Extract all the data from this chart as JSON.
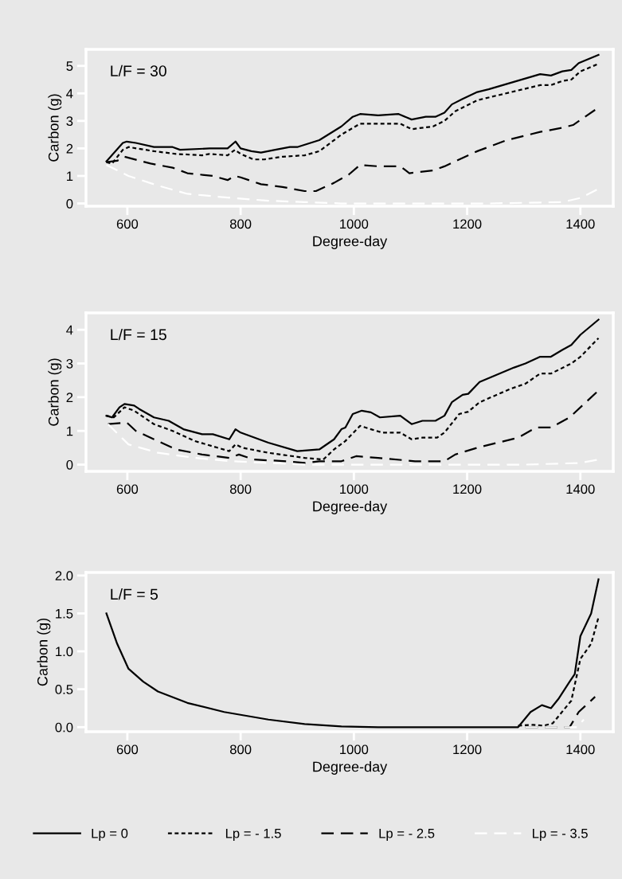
{
  "chart_data": [
    {
      "type": "line",
      "title": "L/F = 30",
      "xlabel": "Degree-day",
      "ylabel": "Carbon (g)",
      "xlim": [
        527,
        1458
      ],
      "xticks": [
        600,
        800,
        1000,
        1200,
        1400
      ],
      "ylim": [
        -0.1,
        5.6
      ],
      "yticks": [
        0,
        1,
        2,
        3,
        4,
        5
      ],
      "grid": false,
      "series": [
        {
          "color": "#000000",
          "line_style": "solid",
          "x": [
            563,
            592,
            599,
            615,
            647,
            660,
            680,
            693,
            745,
            777,
            791,
            800,
            819,
            836,
            861,
            887,
            900,
            939,
            978,
            998,
            1011,
            1043,
            1079,
            1102,
            1127,
            1144,
            1160,
            1173,
            1192,
            1218,
            1238,
            1329,
            1348,
            1368,
            1384,
            1397,
            1432
          ],
          "values": [
            1.53,
            2.2,
            2.25,
            2.2,
            2.05,
            2.05,
            2.05,
            1.95,
            2.0,
            2.0,
            2.25,
            2.0,
            1.9,
            1.85,
            1.95,
            2.05,
            2.05,
            2.3,
            2.8,
            3.15,
            3.25,
            3.2,
            3.25,
            3.05,
            3.15,
            3.15,
            3.3,
            3.6,
            3.8,
            4.05,
            4.15,
            4.7,
            4.65,
            4.8,
            4.85,
            5.1,
            5.4
          ]
        },
        {
          "color": "#000000",
          "line_style": "dotted",
          "x": [
            563,
            573,
            592,
            602,
            647,
            686,
            732,
            745,
            777,
            790,
            800,
            823,
            842,
            874,
            913,
            939,
            978,
            1011,
            1043,
            1082,
            1102,
            1140,
            1160,
            1179,
            1218,
            1238,
            1329,
            1348,
            1368,
            1384,
            1400,
            1429
          ],
          "values": [
            1.5,
            1.45,
            1.95,
            2.05,
            1.9,
            1.8,
            1.75,
            1.8,
            1.75,
            1.95,
            1.8,
            1.6,
            1.6,
            1.7,
            1.75,
            1.9,
            2.5,
            2.9,
            2.9,
            2.9,
            2.7,
            2.8,
            3.0,
            3.35,
            3.75,
            3.85,
            4.3,
            4.3,
            4.45,
            4.5,
            4.8,
            5.05
          ]
        },
        {
          "color": "#000000",
          "line_style": "dashed",
          "x": [
            563,
            582,
            595,
            641,
            680,
            706,
            751,
            777,
            790,
            800,
            836,
            874,
            913,
            933,
            965,
            991,
            1011,
            1043,
            1082,
            1098,
            1140,
            1160,
            1218,
            1270,
            1329,
            1368,
            1387,
            1426
          ],
          "values": [
            1.5,
            1.55,
            1.7,
            1.45,
            1.3,
            1.1,
            1.0,
            0.85,
            1.0,
            0.95,
            0.7,
            0.6,
            0.45,
            0.45,
            0.75,
            1.05,
            1.4,
            1.35,
            1.35,
            1.1,
            1.2,
            1.35,
            1.9,
            2.3,
            2.6,
            2.75,
            2.85,
            3.4
          ]
        },
        {
          "color": "#ffffff",
          "line_style": "dashed",
          "x": [
            563,
            602,
            654,
            706,
            784,
            849,
            913,
            978,
            1108,
            1238,
            1368,
            1400,
            1429
          ],
          "values": [
            1.4,
            1.0,
            0.65,
            0.35,
            0.2,
            0.1,
            0.05,
            0.0,
            0.0,
            0.0,
            0.05,
            0.2,
            0.5
          ]
        }
      ]
    },
    {
      "type": "line",
      "title": "L/F = 15",
      "xlabel": "Degree-day",
      "ylabel": "Carbon (g)",
      "xlim": [
        527,
        1458
      ],
      "xticks": [
        600,
        800,
        1000,
        1200,
        1400
      ],
      "ylim": [
        -0.2,
        4.5
      ],
      "yticks": [
        0,
        1,
        2,
        3,
        4
      ],
      "grid": false,
      "series": [
        {
          "color": "#000000",
          "line_style": "solid",
          "x": [
            563,
            573,
            586,
            595,
            612,
            621,
            647,
            673,
            699,
            732,
            751,
            780,
            791,
            800,
            849,
            900,
            939,
            965,
            978,
            985,
            998,
            1014,
            1030,
            1046,
            1082,
            1102,
            1121,
            1144,
            1160,
            1173,
            1192,
            1202,
            1222,
            1283,
            1303,
            1329,
            1348,
            1368,
            1384,
            1400,
            1432
          ],
          "values": [
            1.45,
            1.4,
            1.7,
            1.8,
            1.75,
            1.65,
            1.4,
            1.3,
            1.05,
            0.9,
            0.9,
            0.75,
            1.05,
            0.95,
            0.65,
            0.4,
            0.45,
            0.75,
            1.05,
            1.1,
            1.5,
            1.6,
            1.55,
            1.4,
            1.45,
            1.2,
            1.3,
            1.3,
            1.45,
            1.85,
            2.07,
            2.1,
            2.45,
            2.88,
            3.0,
            3.2,
            3.2,
            3.4,
            3.55,
            3.85,
            4.3
          ]
        },
        {
          "color": "#000000",
          "line_style": "dotted",
          "x": [
            563,
            576,
            595,
            612,
            647,
            680,
            719,
            780,
            791,
            803,
            849,
            913,
            946,
            965,
            985,
            1011,
            1030,
            1050,
            1082,
            1102,
            1121,
            1147,
            1160,
            1186,
            1202,
            1222,
            1277,
            1303,
            1329,
            1348,
            1384,
            1400,
            1432
          ],
          "values": [
            1.45,
            1.4,
            1.7,
            1.6,
            1.2,
            1.0,
            0.7,
            0.4,
            0.6,
            0.5,
            0.35,
            0.2,
            0.15,
            0.45,
            0.7,
            1.15,
            1.05,
            0.95,
            0.95,
            0.75,
            0.8,
            0.8,
            0.95,
            1.5,
            1.57,
            1.85,
            2.25,
            2.4,
            2.7,
            2.7,
            3.0,
            3.2,
            3.75
          ]
        },
        {
          "color": "#000000",
          "line_style": "dashed",
          "x": [
            566,
            599,
            615,
            647,
            686,
            732,
            780,
            797,
            823,
            881,
            913,
            939,
            978,
            1004,
            1043,
            1108,
            1160,
            1179,
            1218,
            1290,
            1322,
            1348,
            1381,
            1432
          ],
          "values": [
            1.2,
            1.25,
            1.0,
            0.75,
            0.45,
            0.3,
            0.2,
            0.3,
            0.15,
            0.1,
            0.05,
            0.1,
            0.1,
            0.25,
            0.2,
            0.1,
            0.1,
            0.3,
            0.5,
            0.8,
            1.1,
            1.1,
            1.4,
            2.2
          ]
        },
        {
          "color": "#ffffff",
          "line_style": "dashed",
          "x": [
            566,
            602,
            654,
            719,
            784,
            913,
            1108,
            1303,
            1400,
            1432
          ],
          "values": [
            1.2,
            0.6,
            0.35,
            0.2,
            0.1,
            0.0,
            0.0,
            0.0,
            0.05,
            0.15
          ]
        }
      ]
    },
    {
      "type": "line",
      "title": "L/F = 5",
      "xlabel": "Degree-day",
      "ylabel": "Carbon (g)",
      "xlim": [
        527,
        1458
      ],
      "xticks": [
        600,
        800,
        1000,
        1200,
        1400
      ],
      "ylim": [
        -0.06,
        2.04
      ],
      "yticks": [
        {
          "value": 0,
          "label": "0.0"
        },
        0.5,
        {
          "value": 1,
          "label": "1.0"
        },
        1.5,
        {
          "value": 2,
          "label": "2.0"
        }
      ],
      "grid": false,
      "legend": "bottom",
      "series": [
        {
          "name": "Lp = 0",
          "color": "#000000",
          "line_style": "solid",
          "x": [
            563,
            582,
            602,
            628,
            654,
            706,
            771,
            849,
            913,
            978,
            1043,
            1290,
            1312,
            1332,
            1348,
            1361,
            1381,
            1390,
            1400,
            1419,
            1432
          ],
          "values": [
            1.5,
            1.1,
            0.77,
            0.6,
            0.47,
            0.32,
            0.2,
            0.1,
            0.04,
            0.01,
            0.0,
            0.0,
            0.2,
            0.29,
            0.25,
            0.37,
            0.6,
            0.7,
            1.2,
            1.5,
            1.95
          ]
        },
        {
          "name": "Lp = - 1.5",
          "color": "#000000",
          "line_style": "dotted",
          "x": [
            1290,
            1316,
            1335,
            1351,
            1384,
            1400,
            1419,
            1432
          ],
          "values": [
            0.02,
            0.03,
            0.02,
            0.05,
            0.35,
            0.9,
            1.1,
            1.45
          ]
        },
        {
          "name": "Lp = - 2.5",
          "color": "#000000",
          "line_style": "dashed",
          "x": [
            1303,
            1381,
            1397,
            1426
          ],
          "values": [
            0.0,
            0.0,
            0.2,
            0.4
          ]
        },
        {
          "name": "Lp = - 3.5",
          "color": "#ffffff",
          "line_style": "dashed",
          "x": [
            1303,
            1394,
            1406
          ],
          "values": [
            0.0,
            0.0,
            0.1
          ]
        }
      ]
    }
  ]
}
